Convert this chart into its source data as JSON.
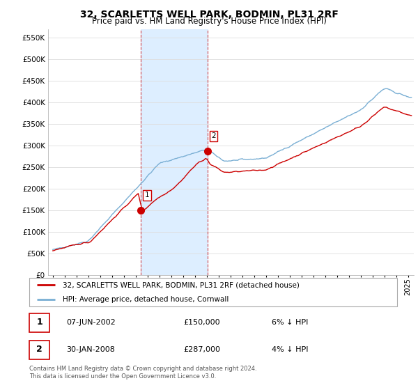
{
  "title": "32, SCARLETTS WELL PARK, BODMIN, PL31 2RF",
  "subtitle": "Price paid vs. HM Land Registry's House Price Index (HPI)",
  "ylim": [
    0,
    570000
  ],
  "yticks": [
    0,
    50000,
    100000,
    150000,
    200000,
    250000,
    300000,
    350000,
    400000,
    450000,
    500000,
    550000
  ],
  "xlim_start": 1994.6,
  "xlim_end": 2025.5,
  "sale1_x": 2002.44,
  "sale1_y": 150000,
  "sale1_label": "1",
  "sale2_x": 2008.08,
  "sale2_y": 287000,
  "sale2_label": "2",
  "shade_color": "#ddeeff",
  "line_color_red": "#cc0000",
  "line_color_blue": "#7aafd4",
  "marker_color": "#cc0000",
  "grid_color": "#dddddd",
  "background_color": "#ffffff",
  "legend_label_red": "32, SCARLETTS WELL PARK, BODMIN, PL31 2RF (detached house)",
  "legend_label_blue": "HPI: Average price, detached house, Cornwall",
  "table_row1": [
    "1",
    "07-JUN-2002",
    "£150,000",
    "6% ↓ HPI"
  ],
  "table_row2": [
    "2",
    "30-JAN-2008",
    "£287,000",
    "4% ↓ HPI"
  ],
  "footnote": "Contains HM Land Registry data © Crown copyright and database right 2024.\nThis data is licensed under the Open Government Licence v3.0.",
  "title_fontsize": 10,
  "subtitle_fontsize": 8.5,
  "tick_fontsize": 7.5
}
